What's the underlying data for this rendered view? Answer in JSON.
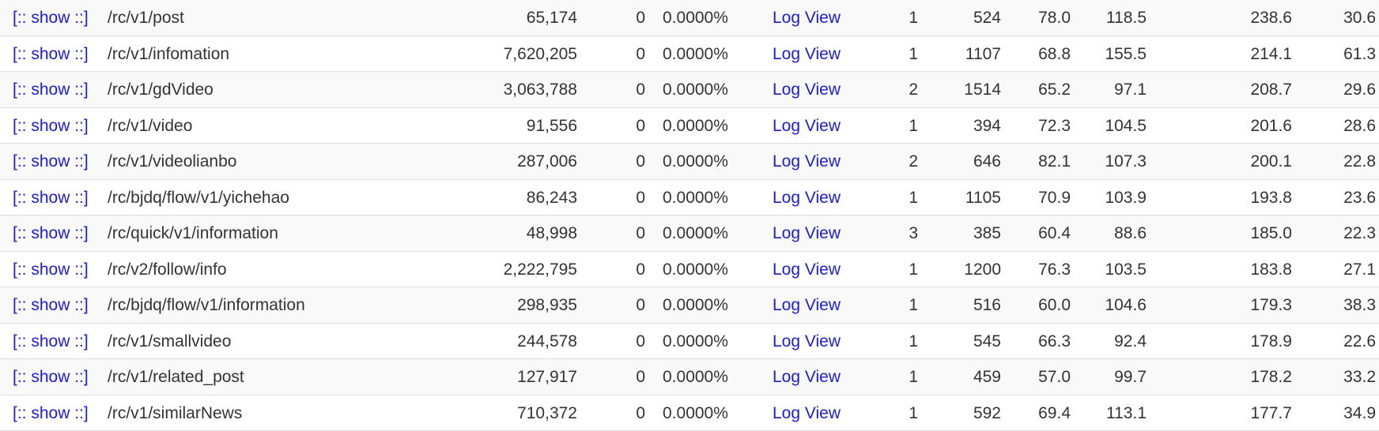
{
  "show_label": "[:: show ::]",
  "log_label": "Log View",
  "rows": [
    {
      "url": "/rc/v1/post",
      "count": "65,174",
      "fail": "0",
      "pct": "0.0000%",
      "c1": "1",
      "c2": "524",
      "c3": "78.0",
      "c4": "118.5",
      "c5": "238.6",
      "c6": "30.6"
    },
    {
      "url": "/rc/v1/infomation",
      "count": "7,620,205",
      "fail": "0",
      "pct": "0.0000%",
      "c1": "1",
      "c2": "1107",
      "c3": "68.8",
      "c4": "155.5",
      "c5": "214.1",
      "c6": "61.3"
    },
    {
      "url": "/rc/v1/gdVideo",
      "count": "3,063,788",
      "fail": "0",
      "pct": "0.0000%",
      "c1": "2",
      "c2": "1514",
      "c3": "65.2",
      "c4": "97.1",
      "c5": "208.7",
      "c6": "29.6"
    },
    {
      "url": "/rc/v1/video",
      "count": "91,556",
      "fail": "0",
      "pct": "0.0000%",
      "c1": "1",
      "c2": "394",
      "c3": "72.3",
      "c4": "104.5",
      "c5": "201.6",
      "c6": "28.6"
    },
    {
      "url": "/rc/v1/videolianbo",
      "count": "287,006",
      "fail": "0",
      "pct": "0.0000%",
      "c1": "2",
      "c2": "646",
      "c3": "82.1",
      "c4": "107.3",
      "c5": "200.1",
      "c6": "22.8"
    },
    {
      "url": "/rc/bjdq/flow/v1/yichehao",
      "count": "86,243",
      "fail": "0",
      "pct": "0.0000%",
      "c1": "1",
      "c2": "1105",
      "c3": "70.9",
      "c4": "103.9",
      "c5": "193.8",
      "c6": "23.6"
    },
    {
      "url": "/rc/quick/v1/information",
      "count": "48,998",
      "fail": "0",
      "pct": "0.0000%",
      "c1": "3",
      "c2": "385",
      "c3": "60.4",
      "c4": "88.6",
      "c5": "185.0",
      "c6": "22.3"
    },
    {
      "url": "/rc/v2/follow/info",
      "count": "2,222,795",
      "fail": "0",
      "pct": "0.0000%",
      "c1": "1",
      "c2": "1200",
      "c3": "76.3",
      "c4": "103.5",
      "c5": "183.8",
      "c6": "27.1"
    },
    {
      "url": "/rc/bjdq/flow/v1/information",
      "count": "298,935",
      "fail": "0",
      "pct": "0.0000%",
      "c1": "1",
      "c2": "516",
      "c3": "60.0",
      "c4": "104.6",
      "c5": "179.3",
      "c6": "38.3"
    },
    {
      "url": "/rc/v1/smallvideo",
      "count": "244,578",
      "fail": "0",
      "pct": "0.0000%",
      "c1": "1",
      "c2": "545",
      "c3": "66.3",
      "c4": "92.4",
      "c5": "178.9",
      "c6": "22.6"
    },
    {
      "url": "/rc/v1/related_post",
      "count": "127,917",
      "fail": "0",
      "pct": "0.0000%",
      "c1": "1",
      "c2": "459",
      "c3": "57.0",
      "c4": "99.7",
      "c5": "178.2",
      "c6": "33.2"
    },
    {
      "url": "/rc/v1/similarNews",
      "count": "710,372",
      "fail": "0",
      "pct": "0.0000%",
      "c1": "1",
      "c2": "592",
      "c3": "69.4",
      "c4": "113.1",
      "c5": "177.7",
      "c6": "34.9"
    }
  ]
}
